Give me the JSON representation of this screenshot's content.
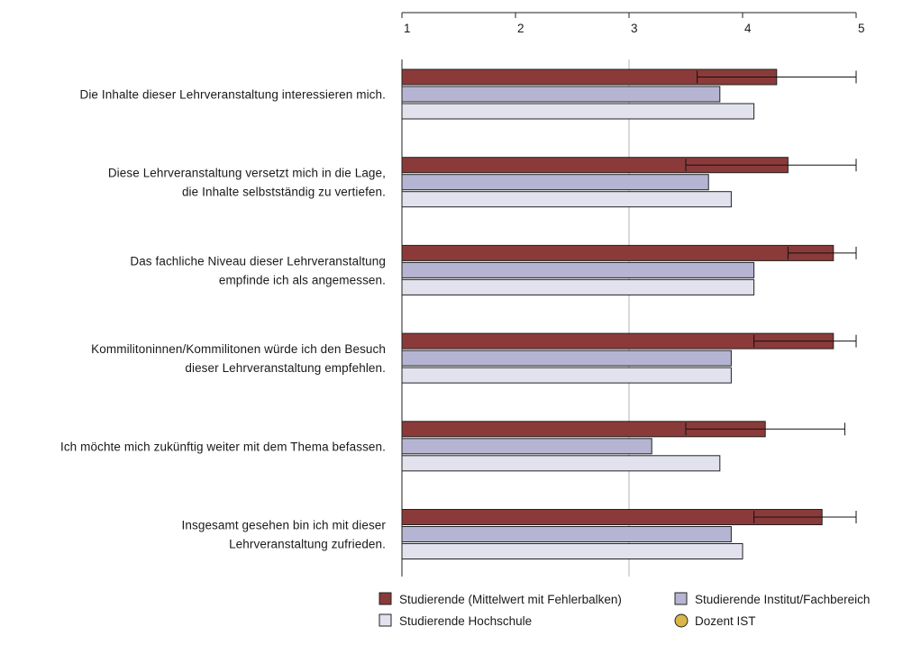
{
  "chart_data": {
    "type": "bar",
    "orientation": "horizontal",
    "xlim": [
      1,
      5
    ],
    "ticks": [
      "1",
      "2",
      "3",
      "4",
      "5"
    ],
    "reference_line": 3,
    "categories": [
      [
        "Die Inhalte dieser Lehrveranstaltung interessieren mich."
      ],
      [
        "Diese Lehrveranstaltung versetzt mich in die Lage,",
        "die Inhalte selbstständig zu vertiefen."
      ],
      [
        "Das fachliche Niveau dieser Lehrveranstaltung",
        "empfinde ich als angemessen."
      ],
      [
        "Kommilitoninnen/Kommilitonen würde ich den Besuch",
        "dieser Lehrveranstaltung empfehlen."
      ],
      [
        "Ich möchte mich zukünftig weiter mit dem Thema befassen."
      ],
      [
        "Insgesamt gesehen bin ich mit dieser",
        "Lehrveranstaltung zufrieden."
      ]
    ],
    "series": [
      {
        "name": "Studierende (Mittelwert mit Fehlerbalken)",
        "color": "#8b3a3a",
        "values": [
          4.3,
          4.4,
          4.8,
          4.8,
          4.2,
          4.7
        ],
        "error_low": [
          3.6,
          3.5,
          4.4,
          4.1,
          3.5,
          4.1
        ],
        "error_high": [
          5.0,
          5.0,
          5.0,
          5.0,
          4.9,
          5.0
        ]
      },
      {
        "name": "Studierende Institut/Fachbereich",
        "color": "#b5b5d3",
        "values": [
          3.8,
          3.7,
          4.1,
          3.9,
          3.2,
          3.9
        ]
      },
      {
        "name": "Studierende Hochschule",
        "color": "#e2e2ef",
        "values": [
          4.1,
          3.9,
          4.1,
          3.9,
          3.8,
          4.0
        ]
      }
    ],
    "extra_legend": {
      "name": "Dozent IST",
      "color": "#d9b64a",
      "marker": "circle"
    },
    "legend_position": "bottom",
    "grid": false
  }
}
